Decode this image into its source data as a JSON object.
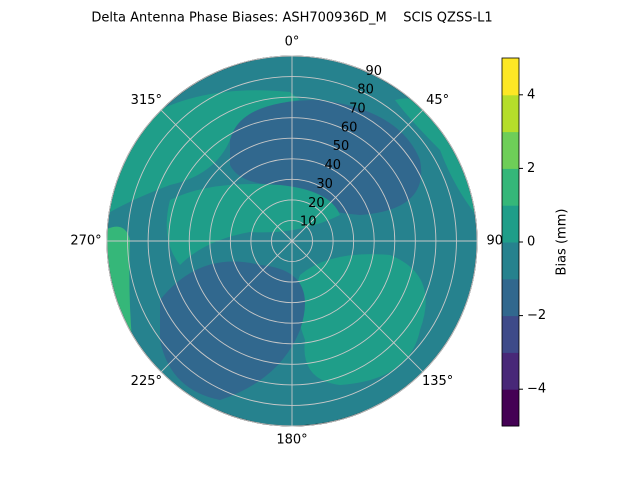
{
  "chart_data": {
    "type": "polar-contour",
    "title": "Delta Antenna Phase Biases: ASH700936D_M    SCIS QZSS-L1",
    "angle_labels": [
      {
        "value": 0,
        "label": "0°"
      },
      {
        "value": 45,
        "label": "45°"
      },
      {
        "value": 90,
        "label": "90°"
      },
      {
        "value": 135,
        "label": "135°"
      },
      {
        "value": 180,
        "label": "180°"
      },
      {
        "value": 225,
        "label": "225°"
      },
      {
        "value": 270,
        "label": "270°"
      },
      {
        "value": 315,
        "label": "315°"
      }
    ],
    "ylim": [
      0,
      90
    ],
    "yticks": [
      10,
      20,
      30,
      40,
      50,
      60,
      70,
      80,
      90
    ],
    "levels": [
      -5,
      -4,
      -3,
      -2,
      -1,
      0,
      1,
      2,
      3,
      4,
      5
    ],
    "colors": [
      "#440154",
      "#482878",
      "#3e4a89",
      "#31688e",
      "#26828e",
      "#1f9e89",
      "#35b779",
      "#6ece58",
      "#b5de2b",
      "#fde725"
    ],
    "colorbar_label": "Bias (mm)",
    "colorbar_ticks": [
      {
        "value": -4,
        "label": "−4"
      },
      {
        "value": -2,
        "label": "−2"
      },
      {
        "value": 0,
        "label": "0"
      },
      {
        "value": 2,
        "label": "2"
      },
      {
        "value": 4,
        "label": "4"
      }
    ]
  }
}
